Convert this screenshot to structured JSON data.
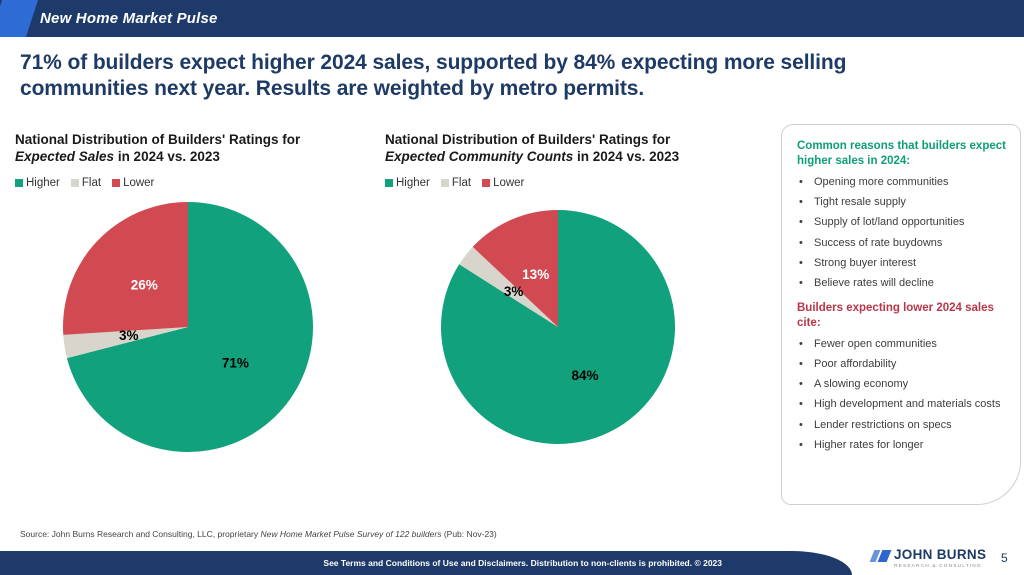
{
  "header": {
    "title": "New Home Market Pulse"
  },
  "headline": "71% of builders expect higher 2024 sales, supported by 84% expecting more selling communities next year. Results are weighted by metro permits.",
  "colors": {
    "navy": "#1d3a6a",
    "accent_blue": "#2e6bd5",
    "green": "#11a17c",
    "flat_gray": "#d8d6cc",
    "red": "#d14a52",
    "green_heading": "#0f9e76",
    "red_heading": "#b93648"
  },
  "chart_data": [
    {
      "type": "pie",
      "title_line1": "National Distribution of Builders' Ratings for",
      "title_italic": "Expected Sales",
      "title_suffix": " in 2024 vs. 2023",
      "legend": [
        "Higher",
        "Flat",
        "Lower"
      ],
      "categories": [
        "Higher",
        "Flat",
        "Lower"
      ],
      "values": [
        71,
        3,
        26
      ],
      "slice_colors": [
        "#11a17c",
        "#d8d6cc",
        "#d14a52"
      ],
      "label_texts": [
        "71%",
        "3%",
        "26%"
      ],
      "label_colors": [
        "#000000",
        "#000000",
        "#ffffff"
      ],
      "start_angle_deg": 0,
      "direction": "clockwise"
    },
    {
      "type": "pie",
      "title_line1": "National Distribution of Builders' Ratings for",
      "title_italic": "Expected Community Counts",
      "title_suffix": " in 2024 vs. 2023",
      "legend": [
        "Higher",
        "Flat",
        "Lower"
      ],
      "categories": [
        "Higher",
        "Flat",
        "Lower"
      ],
      "values": [
        84,
        3,
        13
      ],
      "slice_colors": [
        "#11a17c",
        "#d8d6cc",
        "#d14a52"
      ],
      "label_texts": [
        "84%",
        "3%",
        "13%"
      ],
      "label_colors": [
        "#000000",
        "#000000",
        "#ffffff"
      ],
      "start_angle_deg": 0,
      "direction": "clockwise"
    }
  ],
  "sidebar": {
    "green_heading": "Common reasons that builders expect higher sales in 2024:",
    "green_bullets": [
      "Opening more communities",
      "Tight resale supply",
      "Supply of lot/land opportunities",
      "Success of rate buydowns",
      "Strong buyer interest",
      "Believe rates will decline"
    ],
    "red_heading": "Builders expecting lower 2024 sales cite:",
    "red_bullets": [
      "Fewer open communities",
      "Poor affordability",
      "A slowing economy",
      "High development and materials costs",
      "Lender restrictions on specs",
      "Higher rates for longer"
    ]
  },
  "footer": {
    "source_prefix": "Source: John Burns Research and Consulting, LLC, proprietary ",
    "source_italic": "New Home Market Pulse Survey of 122 builders",
    "source_suffix": " (Pub: Nov-23)",
    "terms": "See Terms and Conditions of Use and Disclaimers. Distribution to non-clients is prohibited. © 2023",
    "logo_name": "JOHN BURNS",
    "logo_sub": "RESEARCH & CONSULTING",
    "page_number": "5"
  }
}
